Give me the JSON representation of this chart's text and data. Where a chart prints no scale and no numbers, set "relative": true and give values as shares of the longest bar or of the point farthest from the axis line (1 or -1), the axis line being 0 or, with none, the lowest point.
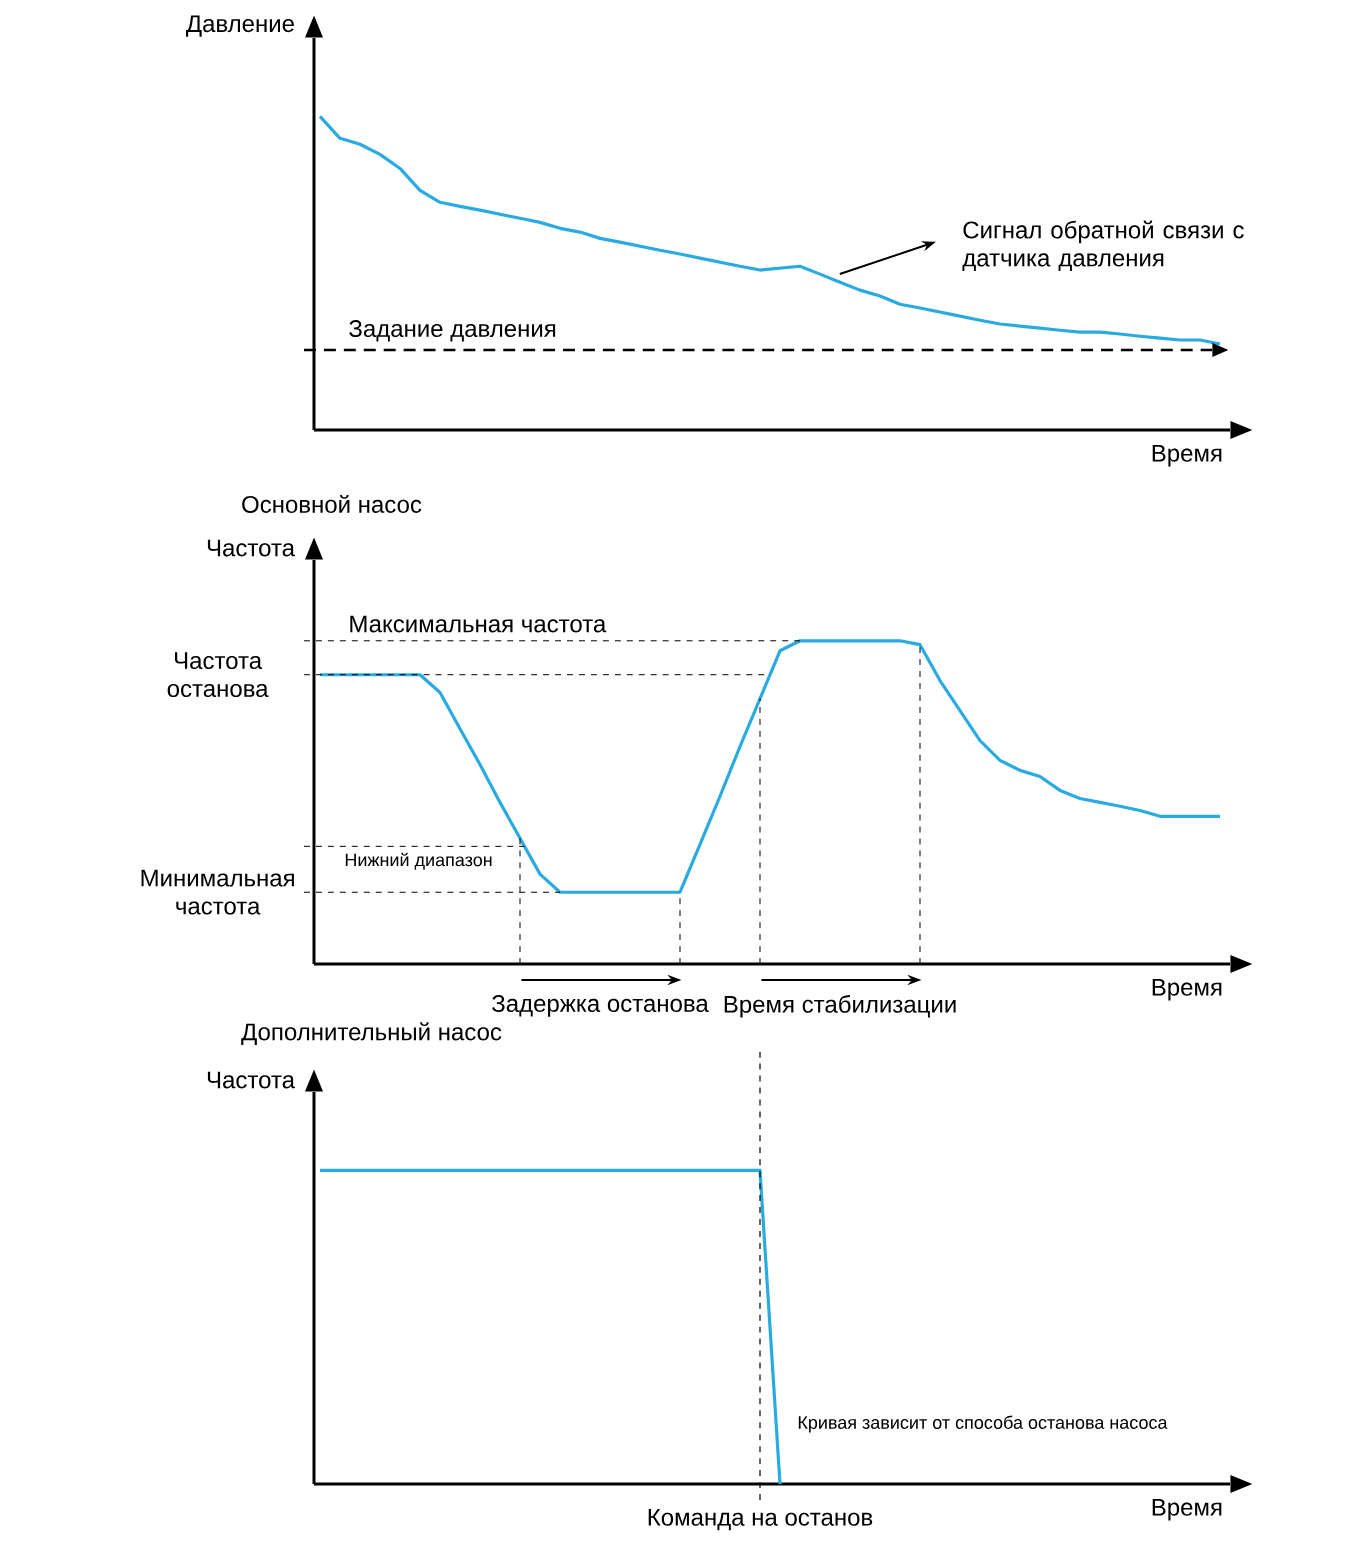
{
  "chart_data": [
    {
      "type": "line",
      "ylabel": "Давление",
      "xlabel": "Время",
      "relative": true,
      "categories": [
        null,
        null,
        null,
        null,
        null,
        null,
        null,
        null,
        null,
        null,
        null,
        null,
        null,
        null,
        null,
        null,
        null,
        null,
        null,
        null,
        null,
        null,
        null,
        null,
        null,
        null,
        null,
        null,
        null,
        null,
        null,
        null,
        null,
        null,
        null,
        null,
        null,
        null,
        null,
        null,
        null,
        null,
        null,
        null,
        null,
        null
      ],
      "series": [
        {
          "color": "#29abe2",
          "values": [
            1.0,
            0.93,
            0.911,
            0.879,
            0.834,
            0.764,
            0.726,
            0.713,
            0.701,
            0.688,
            0.675,
            0.662,
            0.643,
            0.631,
            0.611,
            0.599,
            0.586,
            0.573,
            0.561,
            0.548,
            0.535,
            0.522,
            0.51,
            0.516,
            0.522,
            0.497,
            0.471,
            0.446,
            0.427,
            0.401,
            0.389,
            0.376,
            0.363,
            0.35,
            0.338,
            0.331,
            0.325,
            0.318,
            0.312,
            0.312,
            0.306,
            0.299,
            0.293,
            0.287,
            0.287,
            0.274
          ]
        }
      ],
      "ref_lines": [
        {
          "axis": "y",
          "value": 0.255,
          "label": "Задание давления",
          "color": "#000000",
          "line_style": "dashed"
        }
      ],
      "annotations": [
        "Сигнал обратной связи с датчика давления"
      ]
    },
    {
      "type": "line",
      "title": "Основной насос",
      "ylabel": "Частота",
      "xlabel": "Время",
      "relative": true,
      "categories": [
        null,
        null,
        null,
        null,
        null,
        null,
        null,
        null,
        null,
        null,
        null,
        null,
        null,
        null,
        null,
        null,
        null,
        null,
        null,
        null,
        null,
        null,
        null,
        null,
        null,
        null,
        null,
        null,
        null,
        null,
        null,
        null,
        null,
        null,
        null,
        null,
        null,
        null,
        null,
        null,
        null,
        null,
        null,
        null,
        null,
        null
      ],
      "series": [
        {
          "color": "#29abe2",
          "values": [
            0.895,
            0.895,
            0.895,
            0.895,
            0.895,
            0.895,
            0.84,
            0.728,
            0.617,
            0.5,
            0.389,
            0.278,
            0.222,
            0.222,
            0.222,
            0.222,
            0.222,
            0.222,
            0.222,
            0.37,
            0.519,
            0.673,
            0.821,
            0.969,
            1.0,
            1.0,
            1.0,
            1.0,
            1.0,
            1.0,
            0.988,
            0.877,
            0.784,
            0.691,
            0.63,
            0.599,
            0.58,
            0.537,
            0.512,
            0.5,
            0.488,
            0.475,
            0.457,
            0.457,
            0.457,
            0.457
          ]
        }
      ],
      "ref_lines": [
        {
          "axis": "y",
          "value": 1.0,
          "label": "Максимальная частота",
          "color": "#000000",
          "line_style": "dashed"
        },
        {
          "axis": "y",
          "value": 0.895,
          "label": "Частота останова",
          "color": "#000000",
          "line_style": "dashed"
        },
        {
          "axis": "y",
          "value": 0.364,
          "label": "Нижний диапазон",
          "color": "#000000",
          "line_style": "dashed"
        },
        {
          "axis": "y",
          "value": 0.222,
          "label": "Минимальная частота",
          "color": "#000000",
          "line_style": "dashed"
        }
      ],
      "annotations": [
        "Задержка останова",
        "Время стабилизации"
      ]
    },
    {
      "type": "line",
      "title": "Дополнительный насос",
      "ylabel": "Частота",
      "xlabel": "Время",
      "relative": true,
      "categories": [
        null,
        null,
        null,
        null,
        null,
        null,
        null,
        null,
        null,
        null,
        null,
        null,
        null,
        null,
        null,
        null,
        null,
        null,
        null,
        null,
        null,
        null,
        null,
        null,
        null,
        null,
        null,
        null,
        null,
        null,
        null,
        null,
        null,
        null,
        null,
        null,
        null,
        null,
        null,
        null,
        null,
        null,
        null,
        null,
        null,
        null
      ],
      "series": [
        {
          "color": "#29abe2",
          "values": [
            1.0,
            1.0,
            1.0,
            1.0,
            1.0,
            1.0,
            1.0,
            1.0,
            1.0,
            1.0,
            1.0,
            1.0,
            1.0,
            1.0,
            1.0,
            1.0,
            1.0,
            1.0,
            1.0,
            1.0,
            1.0,
            1.0,
            1.0,
            0.0,
            null,
            null,
            null,
            null,
            null,
            null,
            null,
            null,
            null,
            null,
            null,
            null,
            null,
            null,
            null,
            null,
            null,
            null,
            null,
            null,
            null,
            null
          ]
        }
      ],
      "annotations": [
        "Кривая зависит от способа останова насоса",
        "Команда на останов"
      ]
    }
  ]
}
